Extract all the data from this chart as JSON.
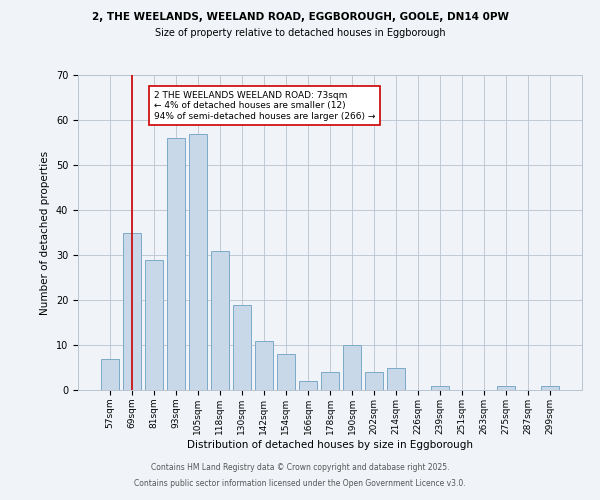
{
  "title_line1": "2, THE WEELANDS, WEELAND ROAD, EGGBOROUGH, GOOLE, DN14 0PW",
  "title_line2": "Size of property relative to detached houses in Eggborough",
  "xlabel": "Distribution of detached houses by size in Eggborough",
  "ylabel": "Number of detached properties",
  "bar_labels": [
    "57sqm",
    "69sqm",
    "81sqm",
    "93sqm",
    "105sqm",
    "118sqm",
    "130sqm",
    "142sqm",
    "154sqm",
    "166sqm",
    "178sqm",
    "190sqm",
    "202sqm",
    "214sqm",
    "226sqm",
    "239sqm",
    "251sqm",
    "263sqm",
    "275sqm",
    "287sqm",
    "299sqm"
  ],
  "bar_values": [
    7,
    35,
    29,
    56,
    57,
    31,
    19,
    11,
    8,
    2,
    4,
    10,
    4,
    5,
    0,
    1,
    0,
    0,
    1,
    0,
    1
  ],
  "bar_color": "#c8d8e8",
  "bar_edge_color": "#7aaac8",
  "vline_x": 1,
  "vline_color": "#cc0000",
  "ylim": [
    0,
    70
  ],
  "yticks": [
    0,
    10,
    20,
    30,
    40,
    50,
    60,
    70
  ],
  "annotation_text": "2 THE WEELANDS WEELAND ROAD: 73sqm\n← 4% of detached houses are smaller (12)\n94% of semi-detached houses are larger (266) →",
  "annotation_box_color": "#ffffff",
  "annotation_box_edge": "#cc0000",
  "footer_line1": "Contains HM Land Registry data © Crown copyright and database right 2025.",
  "footer_line2": "Contains public sector information licensed under the Open Government Licence v3.0.",
  "background_color": "#f0f4f8",
  "plot_bg_color": "#f0f4f8"
}
